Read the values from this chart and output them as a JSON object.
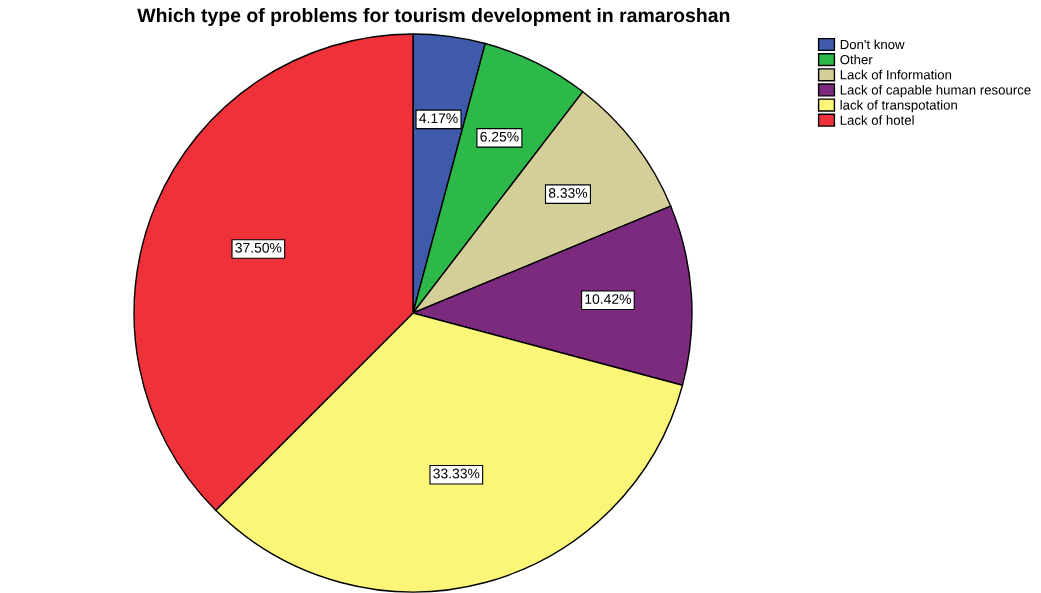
{
  "chart_data": {
    "type": "pie",
    "title": "Which type of problems for tourism development in ramaroshan",
    "categories": [
      "Don't know",
      "Other",
      "Lack of Information",
      "Lack of capable human resource",
      "lack of transpotation",
      "Lack of hotel"
    ],
    "values": [
      4.17,
      6.25,
      8.33,
      10.42,
      33.33,
      37.5
    ],
    "value_labels": [
      "4.17%",
      "6.25%",
      "8.33%",
      "10.42%",
      "33.33%",
      "37.50%"
    ],
    "colors": [
      "#3f5aab",
      "#2db84a",
      "#d4cf98",
      "#7b2a7e",
      "#fbf677",
      "#ef3139"
    ],
    "legend": "top right"
  }
}
